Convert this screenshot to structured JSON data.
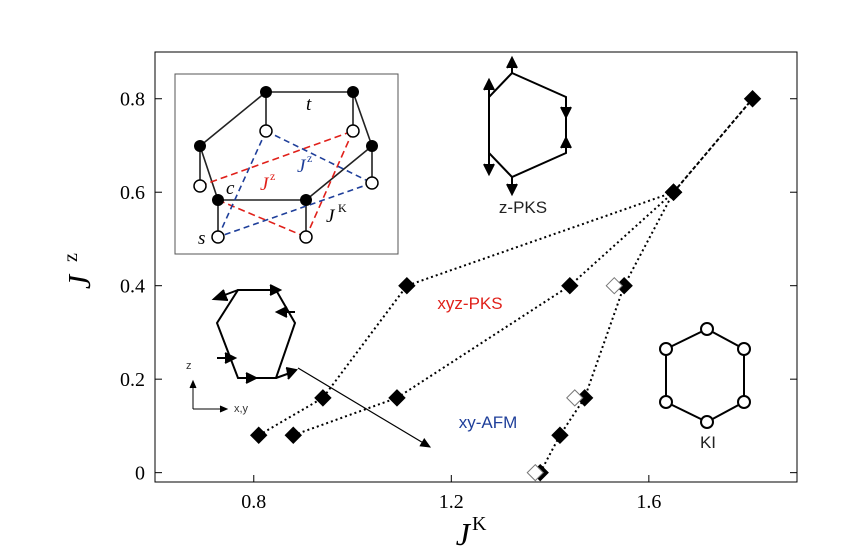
{
  "chart_data": {
    "type": "scatter",
    "xlabel": "J",
    "xlabel_sup": "K",
    "ylabel": "J",
    "ylabel_sup": "z",
    "xlim": [
      0.6,
      1.9
    ],
    "ylim": [
      -0.02,
      0.9
    ],
    "xticks": [
      0.8,
      1.2,
      1.6
    ],
    "xtick_labels": [
      "0.8",
      "1.2",
      "1.6"
    ],
    "yticks": [
      0,
      0.2,
      0.4,
      0.6,
      0.8
    ],
    "ytick_labels": [
      "0",
      "0.2",
      "0.4",
      "0.6",
      "0.8"
    ],
    "grid": false,
    "series": [
      {
        "style": "filled-diamond-dotted",
        "points": [
          [
            0.81,
            0.08
          ],
          [
            0.94,
            0.16
          ],
          [
            1.11,
            0.4
          ],
          [
            1.65,
            0.6
          ]
        ]
      },
      {
        "style": "filled-diamond-dotted",
        "points": [
          [
            0.88,
            0.08
          ],
          [
            1.09,
            0.16
          ],
          [
            1.44,
            0.4
          ],
          [
            1.65,
            0.6
          ]
        ]
      },
      {
        "style": "filled-diamond-dotted",
        "points": [
          [
            1.38,
            0.0
          ],
          [
            1.42,
            0.08
          ],
          [
            1.47,
            0.16
          ],
          [
            1.55,
            0.4
          ],
          [
            1.65,
            0.6
          ]
        ]
      },
      {
        "style": "filled-diamond-dashed",
        "points": [
          [
            1.65,
            0.6
          ],
          [
            1.81,
            0.8
          ]
        ]
      },
      {
        "style": "open-diamond",
        "points": [
          [
            1.37,
            0.0
          ],
          [
            1.45,
            0.16
          ],
          [
            1.53,
            0.4
          ]
        ]
      }
    ],
    "phase_labels": {
      "zpks": "z-PKS",
      "xyzpks": "xyz-PKS",
      "xyafm": "xy-AFM",
      "ki": "KI"
    },
    "colors": {
      "xyzpks": "#e0201a",
      "xyafm": "#1f3f9a",
      "markers": "#000000"
    }
  },
  "inset": {
    "label_t": "t",
    "label_c": "c",
    "label_s": "s",
    "label_jz1": "J",
    "label_jz1_sup": "z",
    "label_jz2": "J",
    "label_jz2_sup": "z",
    "label_jk": "J",
    "label_jk_sup": "K",
    "colors": {
      "red": "#e0201a",
      "blue": "#1f3f9a"
    }
  },
  "axes_icon": {
    "z": "z",
    "xy": "x,y"
  }
}
